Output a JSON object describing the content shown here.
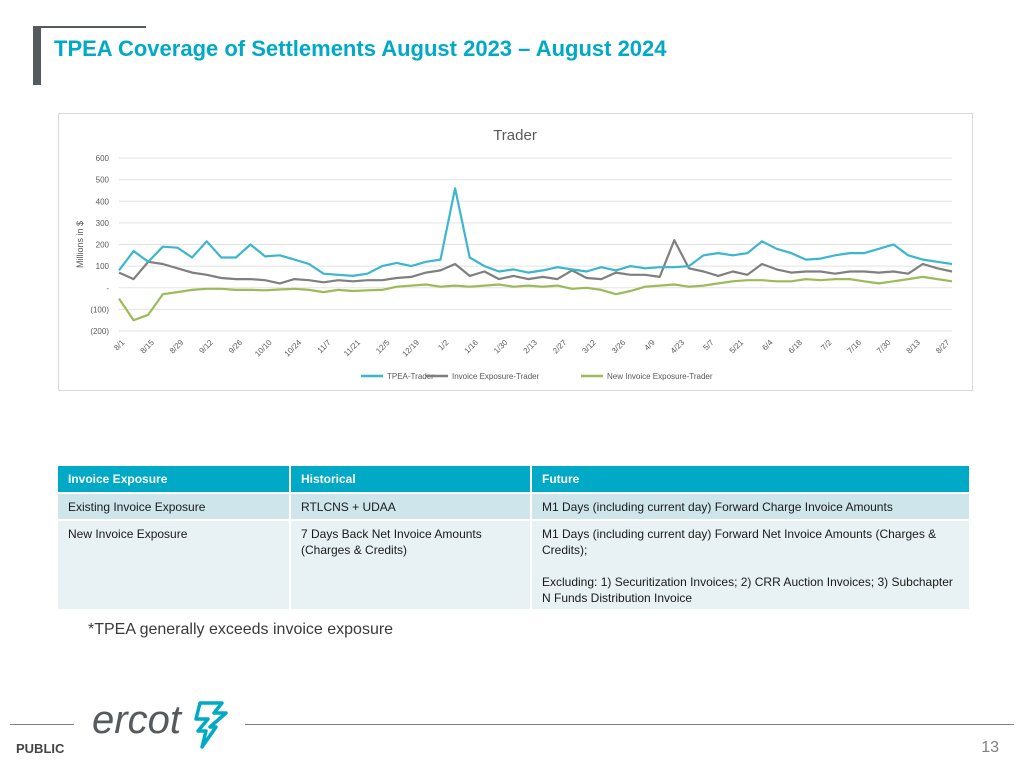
{
  "slide": {
    "title": "TPEA Coverage of Settlements August 2023 – August 2024",
    "footnote": "*TPEA generally exceeds invoice exposure",
    "footer_label": "PUBLIC",
    "page_number": "13",
    "logo_text": "ercot"
  },
  "colors": {
    "accent": "#00a9c5",
    "tpea": "#3cb6cf",
    "invoice": "#7f7f7f",
    "new_invoice": "#9bbb59"
  },
  "table": {
    "headers": [
      "Invoice Exposure",
      "Historical",
      "Future"
    ],
    "rows": [
      {
        "c1": "Existing Invoice Exposure",
        "c2": "RTLCNS + UDAA",
        "c3": "M1 Days (including current day) Forward Charge Invoice Amounts",
        "c3b": ""
      },
      {
        "c1": "New Invoice Exposure",
        "c2": "7 Days Back Net Invoice Amounts (Charges & Credits)",
        "c3": "M1 Days (including current day)  Forward Net Invoice Amounts (Charges & Credits);",
        "c3b": "Excluding: 1) Securitization Invoices; 2) CRR Auction Invoices; 3) Subchapter N Funds Distribution Invoice"
      }
    ]
  },
  "chart_data": {
    "type": "line",
    "title": "Trader",
    "xlabel": "",
    "ylabel": "Millions in $",
    "ylim": [
      -200,
      600
    ],
    "yticks": [
      600,
      500,
      400,
      300,
      200,
      100,
      0,
      -100,
      -200
    ],
    "ytick_labels": [
      "600",
      "500",
      "400",
      "300",
      "200",
      "100",
      "-",
      "(100)",
      "(200)"
    ],
    "grid": true,
    "legend_position": "bottom",
    "x_start": "8/1",
    "x_end": "9/3",
    "x_tick_labels": [
      "8/1",
      "8/15",
      "8/29",
      "9/12",
      "9/26",
      "10/10",
      "10/24",
      "11/7",
      "11/21",
      "12/5",
      "12/19",
      "1/2",
      "1/16",
      "1/30",
      "2/13",
      "2/27",
      "3/12",
      "3/26",
      "4/9",
      "4/23",
      "5/7",
      "5/21",
      "6/4",
      "6/18",
      "7/2",
      "7/16",
      "7/30",
      "8/13",
      "8/27"
    ],
    "x": [
      "8/1",
      "8/8",
      "8/15",
      "8/22",
      "8/29",
      "9/5",
      "9/12",
      "9/19",
      "9/26",
      "10/3",
      "10/10",
      "10/17",
      "10/24",
      "10/31",
      "11/7",
      "11/14",
      "11/21",
      "11/28",
      "12/5",
      "12/12",
      "12/19",
      "12/26",
      "1/2",
      "1/9",
      "1/16",
      "1/23",
      "1/30",
      "2/6",
      "2/13",
      "2/20",
      "2/27",
      "3/5",
      "3/12",
      "3/19",
      "3/26",
      "4/2",
      "4/9",
      "4/16",
      "4/23",
      "4/30",
      "5/7",
      "5/14",
      "5/21",
      "5/28",
      "6/4",
      "6/11",
      "6/18",
      "6/25",
      "7/2",
      "7/9",
      "7/16",
      "7/23",
      "7/30",
      "8/6",
      "8/13",
      "8/20",
      "8/27",
      "9/3"
    ],
    "series": [
      {
        "name": "TPEA-Trader",
        "color": "#3cb6cf",
        "values": [
          80,
          170,
          120,
          190,
          185,
          140,
          215,
          140,
          140,
          200,
          145,
          150,
          130,
          110,
          65,
          60,
          55,
          65,
          100,
          115,
          100,
          120,
          130,
          460,
          140,
          100,
          75,
          85,
          70,
          80,
          95,
          85,
          75,
          95,
          80,
          100,
          90,
          95,
          95,
          100,
          150,
          160,
          150,
          160,
          215,
          180,
          160,
          130,
          135,
          150,
          160,
          160,
          180,
          200,
          150,
          130,
          120,
          110
        ]
      },
      {
        "name": "Invoice Exposure-Trader",
        "color": "#7f7f7f",
        "values": [
          70,
          40,
          120,
          110,
          90,
          70,
          60,
          45,
          40,
          40,
          35,
          20,
          40,
          35,
          25,
          35,
          30,
          35,
          35,
          45,
          50,
          70,
          80,
          110,
          55,
          75,
          40,
          55,
          40,
          50,
          40,
          80,
          45,
          40,
          70,
          60,
          60,
          50,
          220,
          90,
          75,
          55,
          75,
          60,
          110,
          85,
          70,
          75,
          75,
          65,
          75,
          75,
          70,
          75,
          65,
          110,
          90,
          75
        ]
      },
      {
        "name": "New Invoice Exposure-Trader",
        "color": "#9bbb59",
        "values": [
          -50,
          -150,
          -125,
          -30,
          -20,
          -10,
          -5,
          -5,
          -10,
          -10,
          -12,
          -8,
          -5,
          -10,
          -20,
          -10,
          -15,
          -12,
          -10,
          5,
          10,
          15,
          5,
          10,
          5,
          10,
          15,
          5,
          10,
          5,
          10,
          -5,
          0,
          -10,
          -30,
          -15,
          5,
          10,
          15,
          5,
          10,
          20,
          30,
          35,
          35,
          30,
          30,
          40,
          35,
          40,
          40,
          30,
          20,
          30,
          40,
          50,
          40,
          30
        ]
      }
    ]
  }
}
